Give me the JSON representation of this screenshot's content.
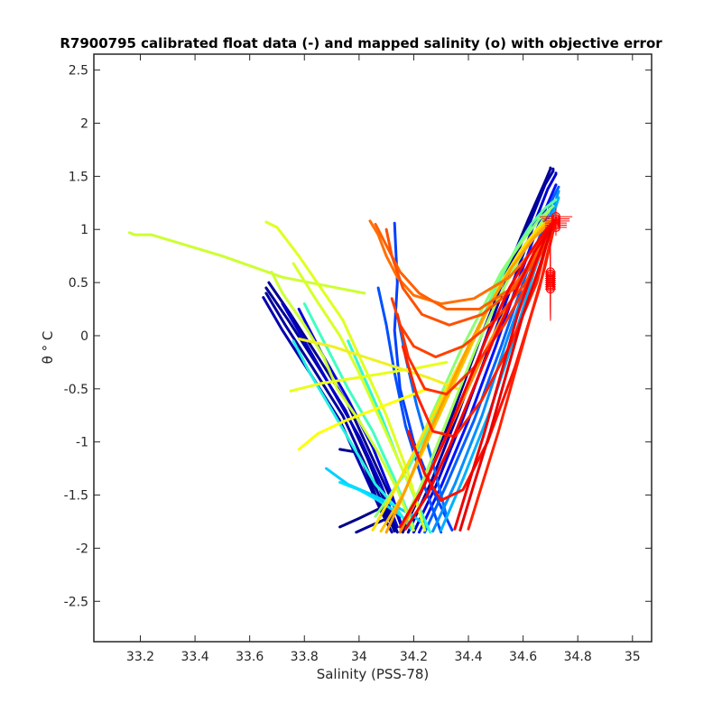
{
  "chart_data": {
    "type": "line",
    "title": "R7900795 calibrated float data (-) and mapped salinity (o) with objective error",
    "xlabel": "Salinity (PSS-78)",
    "ylabel": "θ ° C",
    "xlim": [
      33.03,
      35.07
    ],
    "ylim": [
      -2.88,
      2.65
    ],
    "xticks": [
      33.2,
      33.4,
      33.6,
      33.8,
      34,
      34.2,
      34.4,
      34.6,
      34.8,
      35
    ],
    "yticks": [
      2.5,
      2,
      1.5,
      1,
      0.5,
      0,
      -0.5,
      -1,
      -1.5,
      -2,
      -2.5
    ],
    "grid": false,
    "legend": "none",
    "colormap": "jet",
    "series": [
      {
        "color": "#00008f",
        "x": [
          33.67,
          33.75,
          33.85,
          33.96,
          34.04,
          34.12,
          34.16
        ],
        "y": [
          0.5,
          0.2,
          -0.2,
          -0.65,
          -1.1,
          -1.55,
          -1.83
        ]
      },
      {
        "color": "#000096",
        "x": [
          33.66,
          33.74,
          33.84,
          33.95,
          34.03,
          34.1,
          34.14
        ],
        "y": [
          0.45,
          0.15,
          -0.25,
          -0.7,
          -1.15,
          -1.6,
          -1.85
        ]
      },
      {
        "color": "#00009c",
        "x": [
          33.66,
          33.73,
          33.83,
          33.94,
          34.02,
          34.09,
          34.13
        ],
        "y": [
          0.4,
          0.1,
          -0.3,
          -0.75,
          -1.2,
          -1.6,
          -1.84
        ]
      },
      {
        "color": "#0000b0",
        "x": [
          33.65,
          33.72,
          33.82,
          33.93,
          34.01,
          34.08,
          34.12
        ],
        "y": [
          0.36,
          0.05,
          -0.35,
          -0.8,
          -1.25,
          -1.65,
          -1.85
        ]
      },
      {
        "color": "#0000c8",
        "x": [
          33.72,
          33.8,
          33.9,
          34.0,
          34.08,
          34.14
        ],
        "y": [
          0.3,
          -0.05,
          -0.5,
          -0.95,
          -1.4,
          -1.8
        ]
      },
      {
        "color": "#0000dc",
        "x": [
          33.78,
          33.86,
          33.96,
          34.05,
          34.12,
          34.16
        ],
        "y": [
          0.25,
          -0.15,
          -0.6,
          -1.05,
          -1.5,
          -1.82
        ]
      },
      {
        "color": "#000090",
        "x": [
          33.93,
          34.0,
          34.06,
          34.1
        ],
        "y": [
          -1.07,
          -1.1,
          -1.5,
          -1.7
        ]
      },
      {
        "color": "#00008a",
        "x": [
          33.93,
          34.0,
          34.08
        ],
        "y": [
          -1.8,
          -1.72,
          -1.62
        ]
      },
      {
        "color": "#000098",
        "x": [
          33.99,
          34.05,
          34.12
        ],
        "y": [
          -1.85,
          -1.78,
          -1.7
        ]
      },
      {
        "color": "#00008f",
        "x": [
          34.16,
          34.24,
          34.34,
          34.44,
          34.54,
          34.62,
          34.68,
          34.7,
          34.7
        ],
        "y": [
          -1.85,
          -1.4,
          -0.75,
          -0.05,
          0.6,
          1.1,
          1.45,
          1.57,
          1.58
        ]
      },
      {
        "color": "#0000a8",
        "x": [
          34.18,
          34.26,
          34.36,
          34.46,
          34.55,
          34.63,
          34.68,
          34.71,
          34.71
        ],
        "y": [
          -1.85,
          -1.4,
          -0.75,
          -0.05,
          0.6,
          1.1,
          1.42,
          1.55,
          1.57
        ]
      },
      {
        "color": "#0000d0",
        "x": [
          34.2,
          34.28,
          34.38,
          34.48,
          34.57,
          34.64,
          34.69,
          34.72,
          34.72
        ],
        "y": [
          -1.85,
          -1.42,
          -0.78,
          -0.08,
          0.55,
          1.05,
          1.38,
          1.52,
          1.53
        ]
      },
      {
        "color": "#0010ff",
        "x": [
          34.22,
          34.3,
          34.4,
          34.5,
          34.58,
          34.65,
          34.7,
          34.72
        ],
        "y": [
          -1.85,
          -1.42,
          -0.8,
          -0.1,
          0.5,
          1.0,
          1.3,
          1.42
        ]
      },
      {
        "color": "#0040ff",
        "x": [
          34.13,
          34.14,
          34.13,
          34.15,
          34.2,
          34.27,
          34.34
        ],
        "y": [
          1.06,
          0.5,
          0.05,
          -0.5,
          -1.0,
          -1.45,
          -1.83
        ]
      },
      {
        "color": "#0050ff",
        "x": [
          34.07,
          34.1,
          34.13,
          34.17,
          34.23,
          34.3
        ],
        "y": [
          0.45,
          0.1,
          -0.35,
          -0.85,
          -1.35,
          -1.85
        ]
      },
      {
        "color": "#0070ff",
        "x": [
          34.14,
          34.17,
          34.21,
          34.27,
          34.32
        ],
        "y": [
          0.2,
          -0.2,
          -0.65,
          -1.2,
          -1.7
        ]
      },
      {
        "color": "#0060ff",
        "x": [
          34.24,
          34.32,
          34.42,
          34.52,
          34.6,
          34.67,
          34.71,
          34.73
        ],
        "y": [
          -1.85,
          -1.4,
          -0.8,
          -0.1,
          0.5,
          1.0,
          1.3,
          1.4
        ]
      },
      {
        "color": "#0090ff",
        "x": [
          34.27,
          34.35,
          34.45,
          34.54,
          34.62,
          34.68,
          34.72,
          34.73
        ],
        "y": [
          -1.84,
          -1.4,
          -0.75,
          -0.05,
          0.55,
          1.0,
          1.28,
          1.36
        ]
      },
      {
        "color": "#00b0ff",
        "x": [
          34.3,
          34.38,
          34.48,
          34.57,
          34.64,
          34.7,
          34.73
        ],
        "y": [
          -1.83,
          -1.35,
          -0.7,
          0.0,
          0.6,
          1.05,
          1.3
        ]
      },
      {
        "color": "#00d0ff",
        "x": [
          33.88,
          33.96,
          34.05,
          34.13,
          34.2,
          34.25
        ],
        "y": [
          -1.25,
          -1.4,
          -1.5,
          -1.6,
          -1.7,
          -1.8
        ]
      },
      {
        "color": "#00e0ff",
        "x": [
          33.93,
          34.0,
          34.07,
          34.13,
          34.18
        ],
        "y": [
          -1.38,
          -1.45,
          -1.55,
          -1.65,
          -1.75
        ]
      },
      {
        "color": "#20f0e0",
        "x": [
          33.76,
          33.82,
          33.9,
          33.98,
          34.06,
          34.13,
          34.19
        ],
        "y": [
          -0.05,
          -0.35,
          -0.7,
          -1.05,
          -1.4,
          -1.6,
          -1.82
        ]
      },
      {
        "color": "#40ffc0",
        "x": [
          33.8,
          33.88,
          33.96,
          34.05,
          34.13,
          34.2
        ],
        "y": [
          0.3,
          -0.1,
          -0.5,
          -0.9,
          -1.35,
          -1.8
        ]
      },
      {
        "color": "#30f8d0",
        "x": [
          33.96,
          34.02,
          34.08,
          34.14,
          34.2,
          34.26
        ],
        "y": [
          -0.05,
          -0.4,
          -0.75,
          -1.15,
          -1.5,
          -1.85
        ]
      },
      {
        "color": "#60ffa0",
        "x": [
          34.1,
          34.18,
          34.26,
          34.35,
          34.43,
          34.5,
          34.57,
          34.63,
          34.68,
          34.72
        ],
        "y": [
          -1.55,
          -1.25,
          -0.85,
          -0.4,
          0.05,
          0.45,
          0.8,
          1.05,
          1.2,
          1.28
        ]
      },
      {
        "color": "#8cff73",
        "x": [
          34.06,
          34.14,
          34.22,
          34.3,
          34.37,
          34.45,
          34.52,
          34.6,
          34.66,
          34.71
        ],
        "y": [
          -1.7,
          -1.4,
          -1.0,
          -0.55,
          -0.15,
          0.25,
          0.6,
          0.9,
          1.1,
          1.22
        ]
      },
      {
        "color": "#a0ff60",
        "x": [
          34.15,
          34.22,
          34.29,
          34.36,
          34.43,
          34.5,
          34.58,
          34.65,
          34.7
        ],
        "y": [
          -1.82,
          -1.45,
          -1.0,
          -0.55,
          -0.1,
          0.3,
          0.7,
          1.0,
          1.2
        ]
      },
      {
        "color": "#ccff33",
        "x": [
          33.16,
          33.18,
          33.24,
          33.5,
          33.72,
          34.02
        ],
        "y": [
          0.97,
          0.95,
          0.95,
          0.75,
          0.55,
          0.4
        ]
      },
      {
        "color": "#ccff33",
        "x": [
          33.68,
          33.72,
          33.8,
          33.87,
          33.92,
          34.0,
          34.07,
          34.14,
          34.2
        ],
        "y": [
          0.6,
          0.4,
          0.1,
          -0.2,
          -0.5,
          -0.8,
          -1.1,
          -1.45,
          -1.83
        ]
      },
      {
        "color": "#e0ff20",
        "x": [
          33.66,
          33.7,
          33.78,
          33.86,
          33.94,
          34.02,
          34.1,
          34.18,
          34.24
        ],
        "y": [
          1.07,
          1.02,
          0.75,
          0.45,
          0.15,
          -0.3,
          -0.75,
          -1.3,
          -1.83
        ]
      },
      {
        "color": "#d8ff28",
        "x": [
          33.76,
          33.84,
          33.93,
          34.0,
          34.07,
          34.14,
          34.21
        ],
        "y": [
          0.68,
          0.35,
          0.0,
          -0.35,
          -0.75,
          -1.15,
          -1.55
        ]
      },
      {
        "color": "#e8ff18",
        "x": [
          33.75,
          33.86,
          33.98,
          34.1,
          34.22,
          34.32
        ],
        "y": [
          -0.52,
          -0.45,
          -0.4,
          -0.35,
          -0.3,
          -0.25
        ]
      },
      {
        "color": "#ffff00",
        "x": [
          33.78,
          33.85,
          33.95,
          34.05,
          34.15,
          34.25
        ],
        "y": [
          -1.07,
          -0.92,
          -0.8,
          -0.7,
          -0.6,
          -0.5
        ]
      },
      {
        "color": "#f0f020",
        "x": [
          33.78,
          33.9,
          34.02,
          34.14,
          34.26,
          34.36
        ],
        "y": [
          -0.03,
          -0.1,
          -0.2,
          -0.3,
          -0.4,
          -0.5
        ]
      },
      {
        "color": "#ffe000",
        "x": [
          34.05,
          34.12,
          34.2,
          34.28,
          34.36,
          34.44,
          34.52,
          34.59,
          34.65,
          34.7
        ],
        "y": [
          -1.83,
          -1.5,
          -1.1,
          -0.7,
          -0.3,
          0.1,
          0.5,
          0.8,
          1.0,
          1.1
        ]
      },
      {
        "color": "#ffc000",
        "x": [
          34.08,
          34.16,
          34.24,
          34.32,
          34.4,
          34.48,
          34.56,
          34.63,
          34.69
        ],
        "y": [
          -1.84,
          -1.5,
          -1.05,
          -0.6,
          -0.15,
          0.3,
          0.65,
          0.9,
          1.08
        ]
      },
      {
        "color": "#ffa000",
        "x": [
          34.1,
          34.17,
          34.24,
          34.32,
          34.4,
          34.48,
          34.56,
          34.64,
          34.7
        ],
        "y": [
          -1.85,
          -1.45,
          -1.0,
          -0.55,
          -0.1,
          0.3,
          0.65,
          0.92,
          1.07
        ]
      },
      {
        "color": "#ff8c00",
        "x": [
          34.15,
          34.22,
          34.3,
          34.38,
          34.46,
          34.54,
          34.61,
          34.67,
          34.71
        ],
        "y": [
          -1.85,
          -1.5,
          -1.05,
          -0.6,
          -0.15,
          0.25,
          0.6,
          0.88,
          1.05
        ]
      },
      {
        "color": "#ff7000",
        "x": [
          34.04,
          34.07,
          34.1,
          34.14,
          34.2,
          34.3,
          34.42,
          34.55,
          34.65,
          34.71
        ],
        "y": [
          1.08,
          0.95,
          0.75,
          0.55,
          0.38,
          0.3,
          0.35,
          0.55,
          0.85,
          1.05
        ]
      },
      {
        "color": "#ff6000",
        "x": [
          34.06,
          34.1,
          34.15,
          34.22,
          34.32,
          34.44,
          34.56,
          34.66,
          34.71
        ],
        "y": [
          1.05,
          0.85,
          0.6,
          0.4,
          0.25,
          0.25,
          0.45,
          0.8,
          1.05
        ]
      },
      {
        "color": "#ff5000",
        "x": [
          34.1,
          34.12,
          34.16,
          34.23,
          34.33,
          34.45,
          34.57,
          34.67,
          34.71
        ],
        "y": [
          1.0,
          0.75,
          0.45,
          0.2,
          0.1,
          0.2,
          0.45,
          0.8,
          1.05
        ]
      },
      {
        "color": "#ff4000",
        "x": [
          34.12,
          34.15,
          34.2,
          34.28,
          34.38,
          34.5,
          34.61,
          34.68,
          34.71
        ],
        "y": [
          0.35,
          0.1,
          -0.1,
          -0.2,
          -0.1,
          0.15,
          0.5,
          0.85,
          1.05
        ]
      },
      {
        "color": "#ff3000",
        "x": [
          34.14,
          34.18,
          34.24,
          34.32,
          34.42,
          34.53,
          34.63,
          34.69
        ],
        "y": [
          0.2,
          -0.2,
          -0.5,
          -0.55,
          -0.3,
          0.1,
          0.55,
          1.0
        ]
      },
      {
        "color": "#ff2000",
        "x": [
          34.16,
          34.21,
          34.27,
          34.35,
          34.45,
          34.56,
          34.65,
          34.7
        ],
        "y": [
          -0.1,
          -0.55,
          -0.9,
          -0.95,
          -0.6,
          -0.05,
          0.5,
          1.0
        ]
      },
      {
        "color": "#ff1000",
        "x": [
          34.18,
          34.24,
          34.3,
          34.38,
          34.47,
          34.57,
          34.66,
          34.71
        ],
        "y": [
          -0.9,
          -1.3,
          -1.55,
          -1.45,
          -1.0,
          -0.3,
          0.45,
          1.0
        ]
      },
      {
        "color": "#ff0000",
        "x": [
          34.15,
          34.23,
          34.31,
          34.39,
          34.47,
          34.55,
          34.63,
          34.69,
          34.72
        ],
        "y": [
          -1.8,
          -1.45,
          -1.0,
          -0.5,
          0.0,
          0.45,
          0.8,
          1.02,
          1.1
        ]
      },
      {
        "color": "#f80000",
        "x": [
          34.17,
          34.25,
          34.33,
          34.41,
          34.49,
          34.57,
          34.64,
          34.7,
          34.72
        ],
        "y": [
          -1.82,
          -1.5,
          -1.05,
          -0.55,
          -0.05,
          0.4,
          0.78,
          1.02,
          1.1
        ]
      },
      {
        "color": "#f00000",
        "x": [
          34.35,
          34.4,
          34.46,
          34.52,
          34.58,
          34.64,
          34.69,
          34.72
        ],
        "y": [
          -1.82,
          -1.4,
          -0.9,
          -0.35,
          0.2,
          0.65,
          0.98,
          1.1
        ]
      },
      {
        "color": "#e80000",
        "x": [
          34.37,
          34.42,
          34.48,
          34.54,
          34.6,
          34.66,
          34.7,
          34.72
        ],
        "y": [
          -1.83,
          -1.4,
          -0.9,
          -0.35,
          0.2,
          0.65,
          0.98,
          1.1
        ]
      },
      {
        "color": "#ff2000",
        "x": [
          34.4,
          34.45,
          34.51,
          34.57,
          34.63,
          34.68,
          34.71,
          34.72
        ],
        "y": [
          -1.82,
          -1.4,
          -0.9,
          -0.35,
          0.2,
          0.65,
          0.98,
          1.08
        ]
      }
    ],
    "mapped_salinity": {
      "color": "#ff0000",
      "x": [
        34.7,
        34.7,
        34.7,
        34.7,
        34.7,
        34.7,
        34.7,
        34.7,
        34.7,
        34.72,
        34.72,
        34.72,
        34.72,
        34.72,
        34.72
      ],
      "y": [
        0.6,
        0.58,
        0.56,
        0.54,
        0.52,
        0.5,
        0.48,
        0.46,
        0.44,
        1.12,
        1.1,
        1.08,
        1.06,
        1.04,
        1.02
      ],
      "xerr": [
        0.02,
        0.02,
        0.02,
        0.02,
        0.02,
        0.02,
        0.02,
        0.02,
        0.02,
        0.06,
        0.05,
        0.05,
        0.04,
        0.04,
        0.04
      ],
      "yerr": [
        0.3,
        0.3,
        0.3,
        0.3,
        0.3,
        0.3,
        0.3,
        0.3,
        0.3,
        0.08,
        0.08,
        0.08,
        0.08,
        0.08,
        0.08
      ]
    }
  }
}
